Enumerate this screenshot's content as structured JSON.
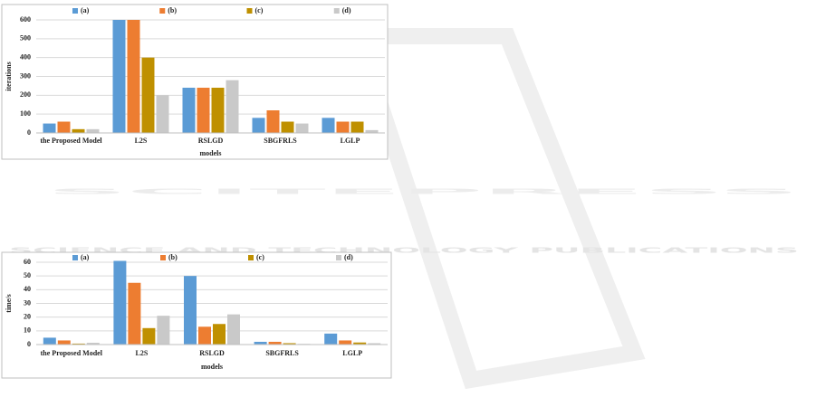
{
  "watermark": {
    "logo": "SCITEPRESS",
    "tagline": "SCIENCE AND TECHNOLOGY PUBLICATIONS"
  },
  "chart_data": [
    {
      "type": "bar",
      "ylabel": "iterations",
      "xlabel": "models",
      "categories": [
        "the Proposed Model",
        "L2S",
        "RSLGD",
        "SBGFRLS",
        "LGLP"
      ],
      "series": [
        {
          "name": "(a)",
          "color": "#5b9bd5",
          "values": [
            50,
            600,
            240,
            80,
            80
          ]
        },
        {
          "name": "(b)",
          "color": "#ed7d31",
          "values": [
            60,
            600,
            240,
            120,
            60
          ]
        },
        {
          "name": "(c)",
          "color": "#bf9000",
          "values": [
            20,
            400,
            240,
            60,
            60
          ]
        },
        {
          "name": "(d)",
          "color": "#c9c9c9",
          "values": [
            20,
            200,
            280,
            50,
            15
          ]
        }
      ],
      "ylim": [
        0,
        600
      ],
      "yticks": [
        0,
        100,
        200,
        300,
        400,
        500,
        600
      ],
      "grid": true,
      "legend": "top"
    },
    {
      "type": "bar",
      "ylabel": "time/s",
      "xlabel": "models",
      "categories": [
        "the Proposed Model",
        "L2S",
        "RSLGD",
        "SBGFRLS",
        "LGLP"
      ],
      "series": [
        {
          "name": "(a)",
          "color": "#5b9bd5",
          "values": [
            5,
            61,
            50,
            2,
            8
          ]
        },
        {
          "name": "(b)",
          "color": "#ed7d31",
          "values": [
            3,
            45,
            13,
            2,
            3
          ]
        },
        {
          "name": "(c)",
          "color": "#bf9000",
          "values": [
            0.7,
            12,
            15,
            1,
            1.5
          ]
        },
        {
          "name": "(d)",
          "color": "#c9c9c9",
          "values": [
            1.3,
            21,
            22,
            0.5,
            1
          ]
        }
      ],
      "ylim": [
        0,
        60
      ],
      "yticks": [
        0,
        10,
        20,
        30,
        40,
        50,
        60
      ],
      "grid": true,
      "legend": "top"
    }
  ]
}
